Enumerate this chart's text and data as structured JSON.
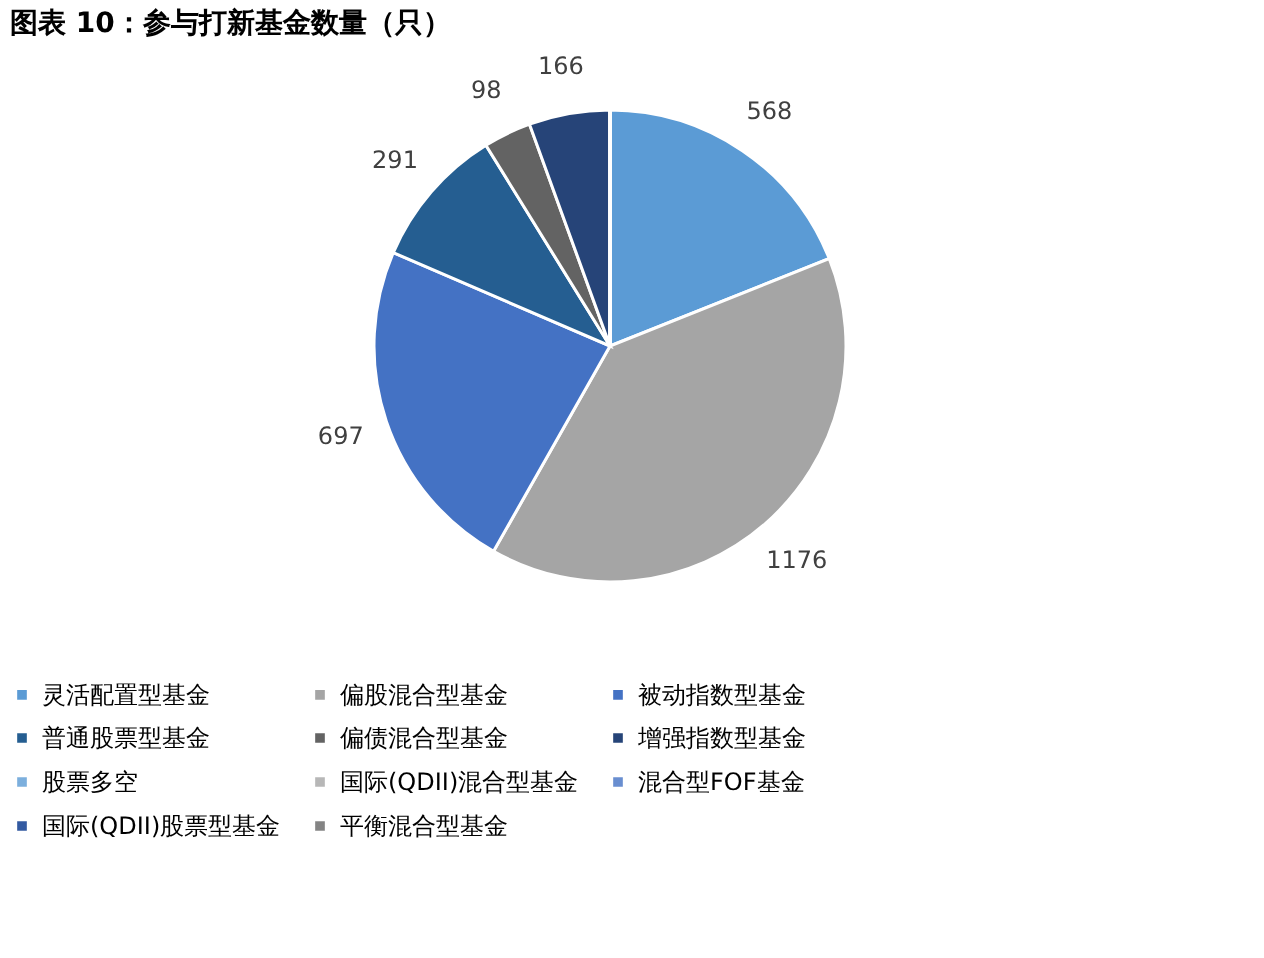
{
  "chart_data": {
    "type": "pie",
    "title": "图表 10：参与打新基金数量（只）",
    "categories": [
      "灵活配置型基金",
      "偏股混合型基金",
      "被动指数型基金",
      "普通股票型基金",
      "偏债混合型基金",
      "增强指数型基金",
      "股票多空",
      "国际(QDII)混合型基金",
      "混合型FOF基金",
      "国际(QDII)股票型基金",
      "平衡混合型基金"
    ],
    "values": [
      568,
      1176,
      697,
      291,
      98,
      166,
      0,
      0,
      0,
      0,
      0
    ],
    "value_labels": [
      "568",
      "1176",
      "697",
      "291",
      "98",
      "166",
      null,
      null,
      null,
      null,
      null
    ],
    "colors": [
      "#5b9bd5",
      "#a5a5a5",
      "#4472c4",
      "#255e91",
      "#636363",
      "#264478",
      "#7cafdd",
      "#b7b7b7",
      "#698ed0",
      "#335aa1",
      "#848484"
    ],
    "legend": "bottom"
  }
}
